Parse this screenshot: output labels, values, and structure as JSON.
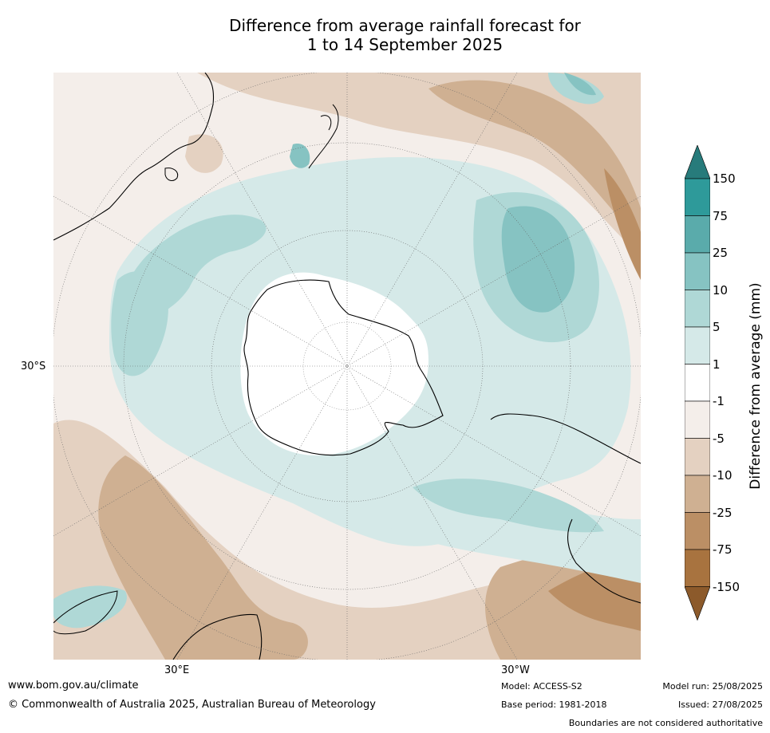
{
  "title_line1": "Difference from average rainfall forecast for",
  "title_line2": "1 to 14 September 2025",
  "lat_label": "30°S",
  "lon_labels": [
    "30°E",
    "30°W"
  ],
  "colorbar": {
    "label": "Difference from average (mm)",
    "ticks": [
      "150",
      "75",
      "25",
      "10",
      "5",
      "1",
      "-1",
      "-5",
      "-10",
      "-25",
      "-75",
      "-150"
    ],
    "colors": [
      "#277b7b",
      "#2e9a9a",
      "#5aabab",
      "#86c3c2",
      "#afd8d6",
      "#d5e9e8",
      "#ffffff",
      "#f4eeea",
      "#e4d1c1",
      "#cfb092",
      "#bb8f65",
      "#a8733f",
      "#8c5a2b"
    ]
  },
  "footer": {
    "website": "www.bom.gov.au/climate",
    "copyright": "© Commonwealth of Australia 2025, Australian Bureau of Meteorology",
    "model": "Model: ACCESS-S2",
    "base_period": "Base period: 1981-2018",
    "model_run": "Model run: 25/08/2025",
    "issued": "Issued: 27/08/2025",
    "disclaimer": "Boundaries are not considered authoritative"
  }
}
